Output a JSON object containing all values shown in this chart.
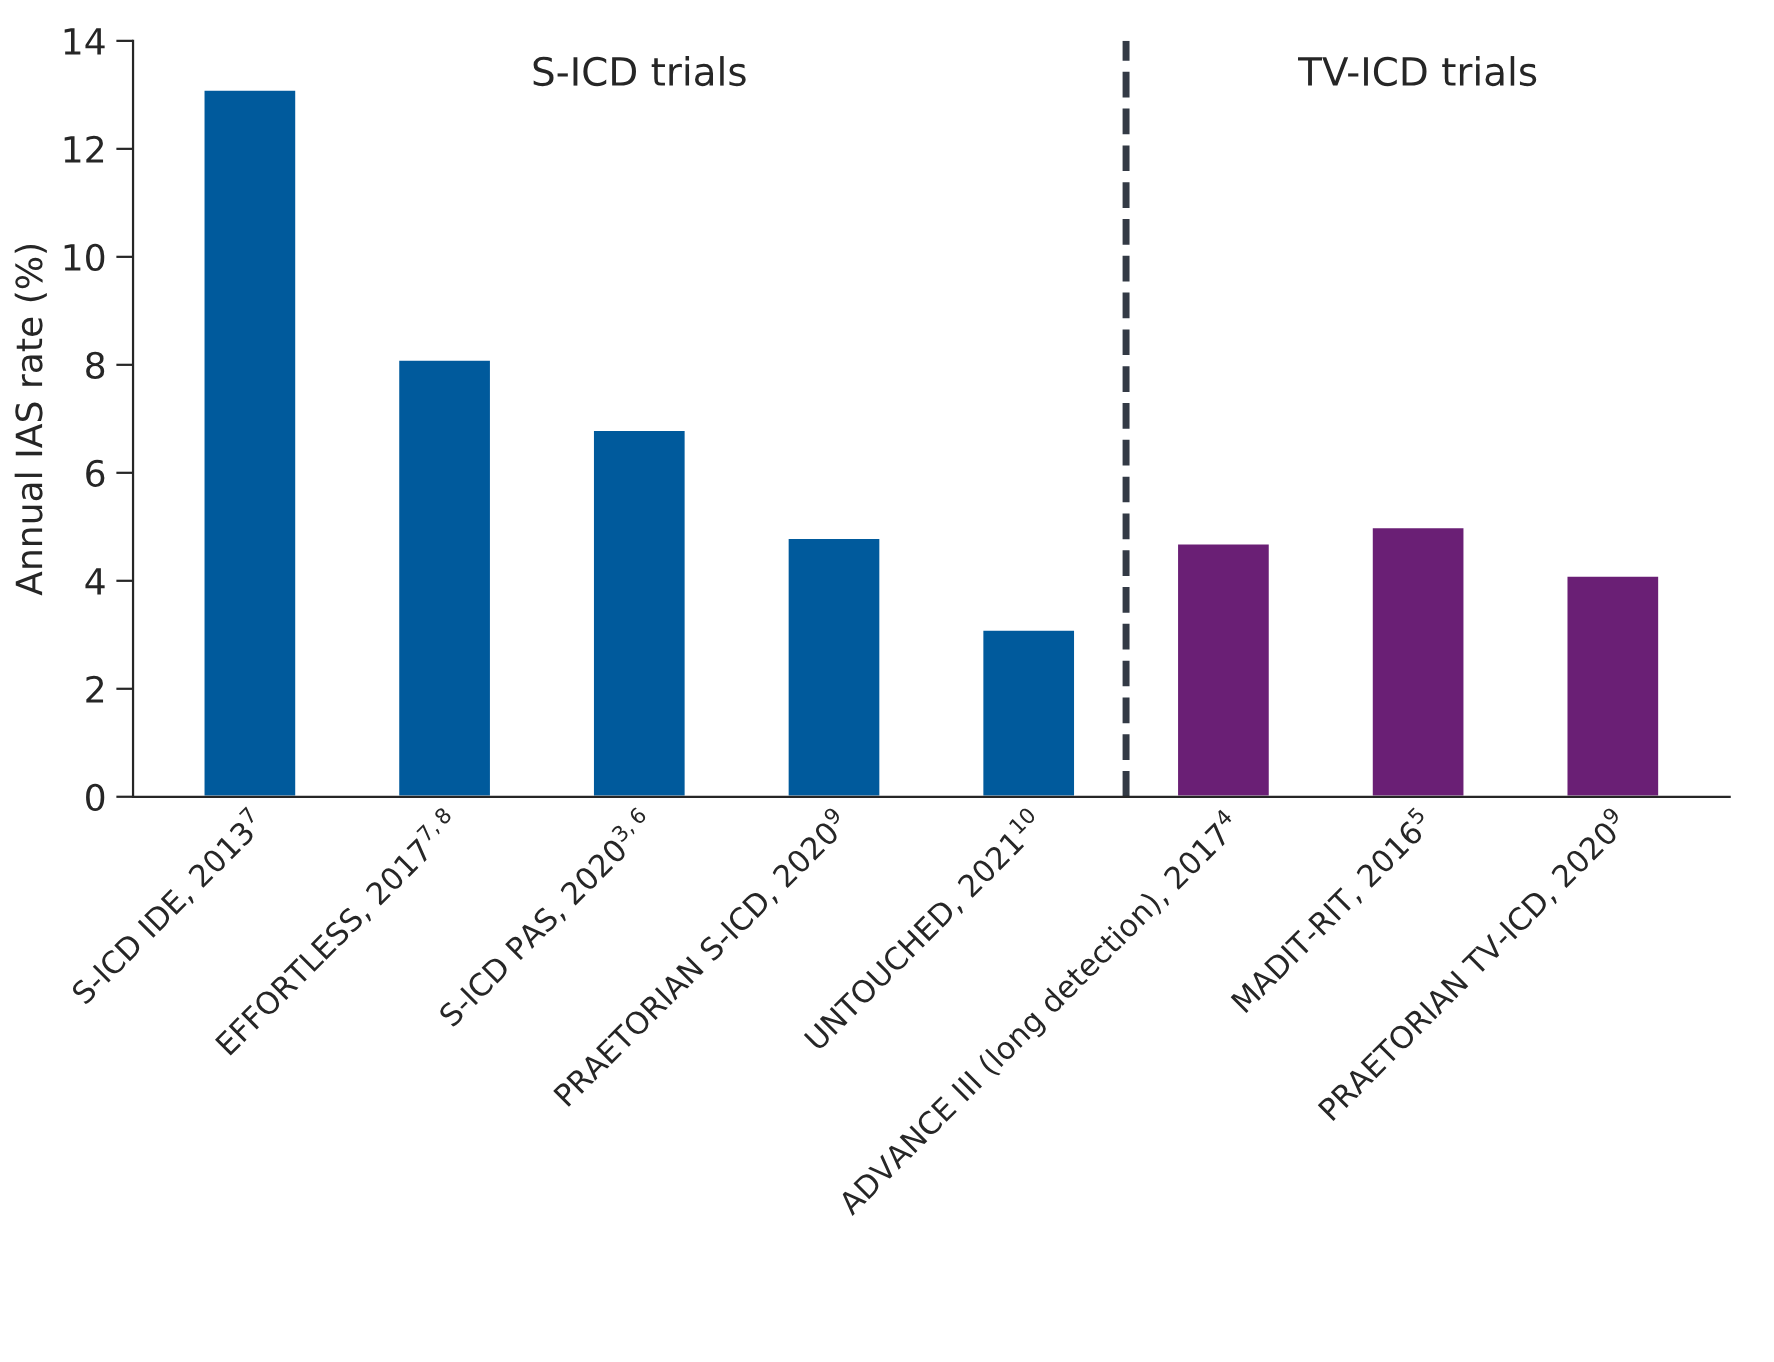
{
  "chart_data": {
    "type": "bar",
    "ylabel": "Annual IAS rate (%)",
    "categories": [
      "S-ICD IDE, 2013$^{7}$",
      "EFFORTLESS, 2017$^{7,8}$",
      "S-ICD PAS, 2020$^{3,6}$",
      "PRAETORIAN S-ICD, 2020$^{9}$",
      "UNTOUCHED, 2021$^{10}$",
      "ADVANCE III (long detection), 2017$^{4}$",
      "MADIT-RIT, 2016$^{5}$",
      "PRAETORIAN TV-ICD, 2020$^{9}$"
    ],
    "values": [
      13.1,
      8.1,
      6.8,
      4.8,
      3.1,
      4.7,
      5.0,
      4.1
    ],
    "colors": [
      "#005a9c",
      "#005a9c",
      "#005a9c",
      "#005a9c",
      "#005a9c",
      "#6a1f75",
      "#6a1f75",
      "#6a1f75"
    ],
    "ylim": [
      0,
      14
    ],
    "yticks": [
      0,
      2,
      4,
      6,
      8,
      10,
      12,
      14
    ],
    "annotations": [
      "S-ICD trials",
      "TV-ICD trials"
    ],
    "grid": false
  }
}
